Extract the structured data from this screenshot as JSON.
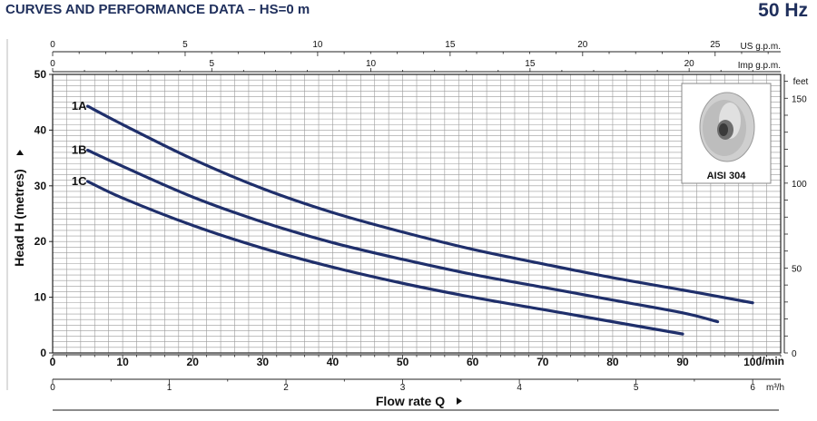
{
  "header": {
    "title": "CURVES AND PERFORMANCE DATA  –  HS=0 m",
    "frequency": "50 Hz"
  },
  "colors": {
    "title": "#1f2f5c",
    "curve": "#1f2f6b",
    "grid": "#9a9a9a",
    "axis": "#222222"
  },
  "inset": {
    "label": "AISI 304",
    "icon": "impeller-icon"
  },
  "chart_data": {
    "type": "line",
    "xlabel": "Flow rate Q",
    "ylabel": "Head H (metres)",
    "x_unit": "l/min",
    "xlim": [
      0,
      104
    ],
    "ylim": [
      0,
      50
    ],
    "grid": true,
    "y_ticks": [
      0,
      10,
      20,
      30,
      40,
      50
    ],
    "x_ticks": [
      0,
      10,
      20,
      30,
      40,
      50,
      60,
      70,
      80,
      90,
      100
    ],
    "right_axis": {
      "unit": "feet",
      "ticks": [
        0,
        50,
        100,
        150
      ]
    },
    "top_axis_us": {
      "unit": "US g.p.m.",
      "ticks": [
        0,
        5,
        10,
        15,
        20,
        25
      ]
    },
    "top_axis_imp": {
      "unit": "Imp g.p.m.",
      "ticks": [
        0,
        5,
        10,
        15,
        20
      ]
    },
    "bottom_axis_m3h": {
      "unit": "m³/h",
      "ticks": [
        0,
        1,
        2,
        3,
        4,
        5,
        6
      ]
    },
    "series": [
      {
        "name": "1A",
        "x": [
          5,
          10,
          20,
          30,
          40,
          50,
          60,
          70,
          80,
          90,
          100
        ],
        "values": [
          44.3,
          41.0,
          34.8,
          29.5,
          25.2,
          21.7,
          18.6,
          16.0,
          13.5,
          11.3,
          9.0
        ]
      },
      {
        "name": "1B",
        "x": [
          5,
          10,
          20,
          30,
          40,
          50,
          60,
          70,
          80,
          90,
          95
        ],
        "values": [
          36.4,
          33.5,
          28.0,
          23.5,
          19.8,
          16.8,
          14.1,
          11.8,
          9.5,
          7.2,
          5.6
        ]
      },
      {
        "name": "1C",
        "x": [
          5,
          10,
          20,
          30,
          40,
          50,
          60,
          70,
          80,
          90
        ],
        "values": [
          30.8,
          27.8,
          22.9,
          18.8,
          15.4,
          12.5,
          10.0,
          7.8,
          5.6,
          3.4
        ]
      }
    ]
  }
}
